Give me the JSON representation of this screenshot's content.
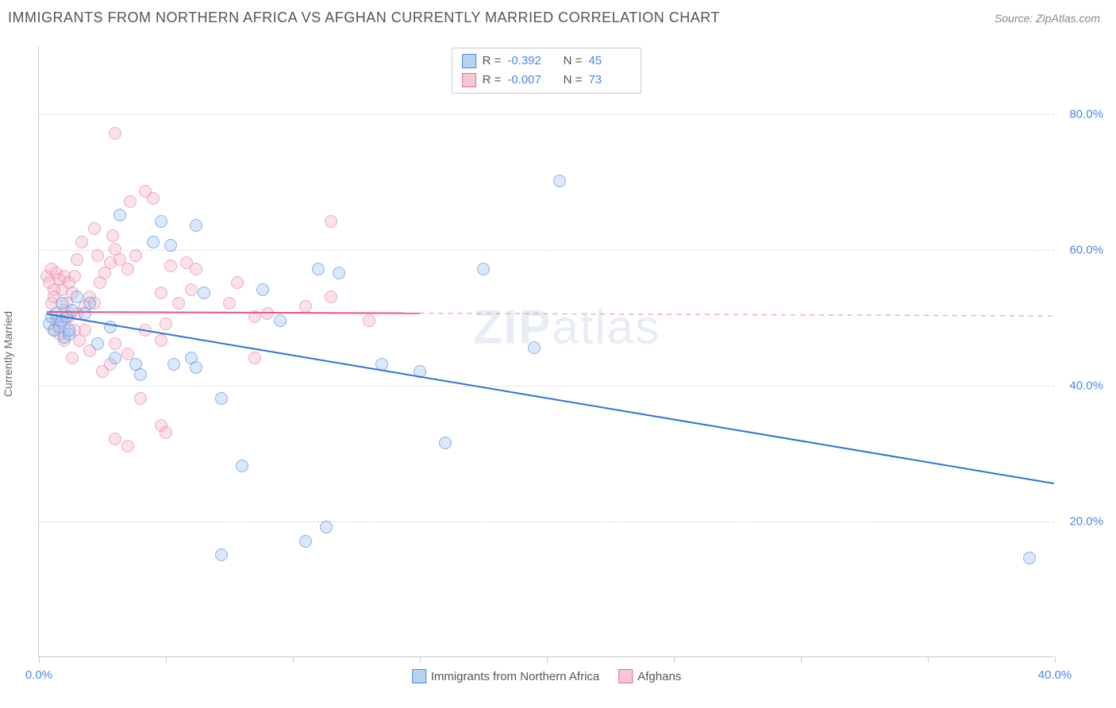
{
  "header": {
    "title": "IMMIGRANTS FROM NORTHERN AFRICA VS AFGHAN CURRENTLY MARRIED CORRELATION CHART",
    "source_prefix": "Source: ",
    "source_name": "ZipAtlas.com"
  },
  "chart": {
    "type": "scatter",
    "y_axis_label": "Currently Married",
    "watermark": "ZIPatlas",
    "background_color": "#ffffff",
    "grid_color": "#d8d8d8",
    "axis_color": "#cccccc",
    "xlim": [
      0,
      40
    ],
    "ylim": [
      0,
      90
    ],
    "y_ticks": [
      20,
      40,
      60,
      80
    ],
    "y_tick_labels": [
      "20.0%",
      "40.0%",
      "60.0%",
      "80.0%"
    ],
    "x_ticks": [
      0,
      5,
      10,
      15,
      20,
      25,
      30,
      35,
      40
    ],
    "x_tick_labels_shown": {
      "0": "0.0%",
      "40": "40.0%"
    },
    "series": [
      {
        "id": "northern_africa",
        "label": "Immigigrants from Northern Africa",
        "legend_label": "Immigrants from Northern Africa",
        "swatch_fill": "#b8d2f2",
        "swatch_border": "#4a86e8",
        "point_fill": "rgba(154,194,240,0.55)",
        "point_border": "#5b93dd",
        "r_value": "-0.392",
        "n_value": "45",
        "trend": {
          "solid": {
            "x1": 0.3,
            "y1": 50.5,
            "x2": 40,
            "y2": 25.5,
            "color": "#2f72d6",
            "width": 2
          }
        },
        "points": [
          [
            0.4,
            49
          ],
          [
            0.5,
            50
          ],
          [
            0.6,
            48
          ],
          [
            0.7,
            50.5
          ],
          [
            0.8,
            48.5
          ],
          [
            0.9,
            49.5
          ],
          [
            1.0,
            47
          ],
          [
            1.1,
            50
          ],
          [
            1.2,
            47.5
          ],
          [
            1.3,
            51
          ],
          [
            3.2,
            65
          ],
          [
            4.5,
            61
          ],
          [
            5.2,
            60.5
          ],
          [
            4.8,
            64
          ],
          [
            6.2,
            63.5
          ],
          [
            11.0,
            57
          ],
          [
            11.8,
            56.5
          ],
          [
            6.5,
            53.5
          ],
          [
            8.8,
            54
          ],
          [
            9.5,
            49.5
          ],
          [
            6.0,
            44
          ],
          [
            5.3,
            43
          ],
          [
            6.2,
            42.5
          ],
          [
            7.2,
            38
          ],
          [
            3.8,
            43
          ],
          [
            4.0,
            41.5
          ],
          [
            3.0,
            44
          ],
          [
            2.3,
            46
          ],
          [
            17.5,
            57
          ],
          [
            20.5,
            70
          ],
          [
            19.5,
            45.5
          ],
          [
            13.5,
            43
          ],
          [
            15.0,
            42
          ],
          [
            16.0,
            31.5
          ],
          [
            11.3,
            19
          ],
          [
            10.5,
            17
          ],
          [
            8.0,
            28
          ],
          [
            7.2,
            15
          ],
          [
            39.0,
            14.5
          ],
          [
            1.5,
            53
          ],
          [
            2.0,
            52
          ],
          [
            1.8,
            50.5
          ],
          [
            0.9,
            52
          ],
          [
            1.2,
            48
          ],
          [
            2.8,
            48.5
          ]
        ]
      },
      {
        "id": "afghans",
        "label": "Afghans",
        "legend_label": "Afghans",
        "swatch_fill": "#f6c7d4",
        "swatch_border": "#e86b94",
        "point_fill": "rgba(244,176,198,0.55)",
        "point_border": "#e58aa9",
        "r_value": "-0.007",
        "n_value": "73",
        "trend": {
          "solid": {
            "x1": 0.3,
            "y1": 50.8,
            "x2": 15.0,
            "y2": 50.6,
            "color": "#e8557f",
            "width": 2
          },
          "dashed": {
            "x1": 15.0,
            "y1": 50.6,
            "x2": 40.0,
            "y2": 50.2,
            "color": "#f3aabf",
            "width": 1.5
          }
        },
        "points": [
          [
            0.3,
            56
          ],
          [
            0.4,
            55
          ],
          [
            0.5,
            57
          ],
          [
            0.6,
            54
          ],
          [
            0.7,
            56.5
          ],
          [
            0.5,
            52
          ],
          [
            0.6,
            53
          ],
          [
            0.8,
            55.5
          ],
          [
            0.9,
            54
          ],
          [
            1.0,
            56
          ],
          [
            1.1,
            52
          ],
          [
            1.2,
            55
          ],
          [
            1.3,
            53.5
          ],
          [
            1.4,
            56
          ],
          [
            1.0,
            51
          ],
          [
            1.2,
            50
          ],
          [
            1.5,
            50.5
          ],
          [
            1.8,
            51.5
          ],
          [
            2.0,
            53
          ],
          [
            2.2,
            52
          ],
          [
            2.4,
            55
          ],
          [
            2.6,
            56.5
          ],
          [
            2.8,
            58
          ],
          [
            2.3,
            59
          ],
          [
            3.0,
            60
          ],
          [
            3.2,
            58.5
          ],
          [
            3.5,
            57
          ],
          [
            3.8,
            59
          ],
          [
            2.9,
            62
          ],
          [
            2.2,
            63
          ],
          [
            3.6,
            67
          ],
          [
            4.5,
            67.5
          ],
          [
            3.0,
            77
          ],
          [
            4.2,
            68.5
          ],
          [
            1.7,
            61
          ],
          [
            1.5,
            58.5
          ],
          [
            5.2,
            57.5
          ],
          [
            5.8,
            58
          ],
          [
            4.8,
            53.5
          ],
          [
            5.5,
            52
          ],
          [
            6.0,
            54
          ],
          [
            6.2,
            57
          ],
          [
            7.8,
            55
          ],
          [
            10.5,
            51.5
          ],
          [
            8.5,
            50
          ],
          [
            5.0,
            49
          ],
          [
            4.2,
            48
          ],
          [
            4.8,
            46.5
          ],
          [
            3.0,
            46
          ],
          [
            3.5,
            44.5
          ],
          [
            2.8,
            43
          ],
          [
            2.0,
            45
          ],
          [
            2.5,
            42
          ],
          [
            1.8,
            48
          ],
          [
            1.0,
            46.5
          ],
          [
            1.3,
            44
          ],
          [
            4.0,
            38
          ],
          [
            4.8,
            34
          ],
          [
            5.0,
            33
          ],
          [
            3.0,
            32
          ],
          [
            3.5,
            31
          ],
          [
            8.5,
            44
          ],
          [
            9.0,
            50.5
          ],
          [
            7.5,
            52
          ],
          [
            13.0,
            49.5
          ],
          [
            11.5,
            53
          ],
          [
            11.5,
            64
          ],
          [
            0.7,
            49.5
          ],
          [
            0.8,
            47.5
          ],
          [
            0.6,
            48
          ],
          [
            1.0,
            49
          ],
          [
            1.4,
            48
          ],
          [
            1.6,
            46.5
          ]
        ]
      }
    ]
  }
}
